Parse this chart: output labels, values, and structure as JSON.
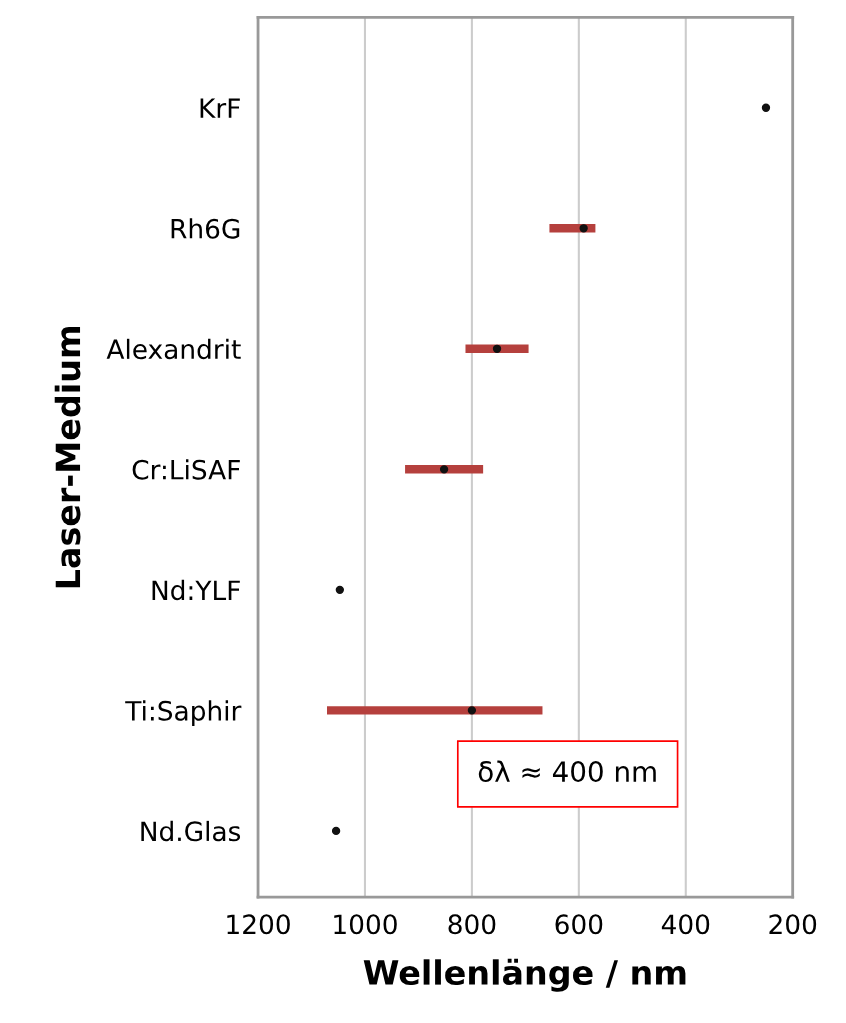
{
  "chart_data": {
    "type": "bar",
    "orientation": "horizontal",
    "categories": [
      "KrF",
      "Rh6G",
      "Alexandrit",
      "Cr:LiSAF",
      "Nd:YLF",
      "Ti:Saphir",
      "Nd.Glas"
    ],
    "series": [
      {
        "color": "#b5403d",
        "base": [
          null,
          569,
          694,
          779,
          null,
          668,
          null
        ],
        "values": [
          null,
          86,
          118,
          146,
          null,
          403,
          null
        ]
      },
      {
        "type": "scatter",
        "color": "#111111",
        "values": [
          250,
          591,
          753,
          852,
          1047,
          800,
          1054
        ]
      }
    ],
    "xlim": [
      1200,
      200
    ],
    "xticks": [
      1200,
      1000,
      800,
      600,
      400,
      200
    ],
    "xlabel": "Wellenlänge / nm",
    "ylabel": "Laser-Medium",
    "grid": "x",
    "marker": "circle",
    "annotations": [
      "δλ ≈ 400 nm"
    ]
  }
}
